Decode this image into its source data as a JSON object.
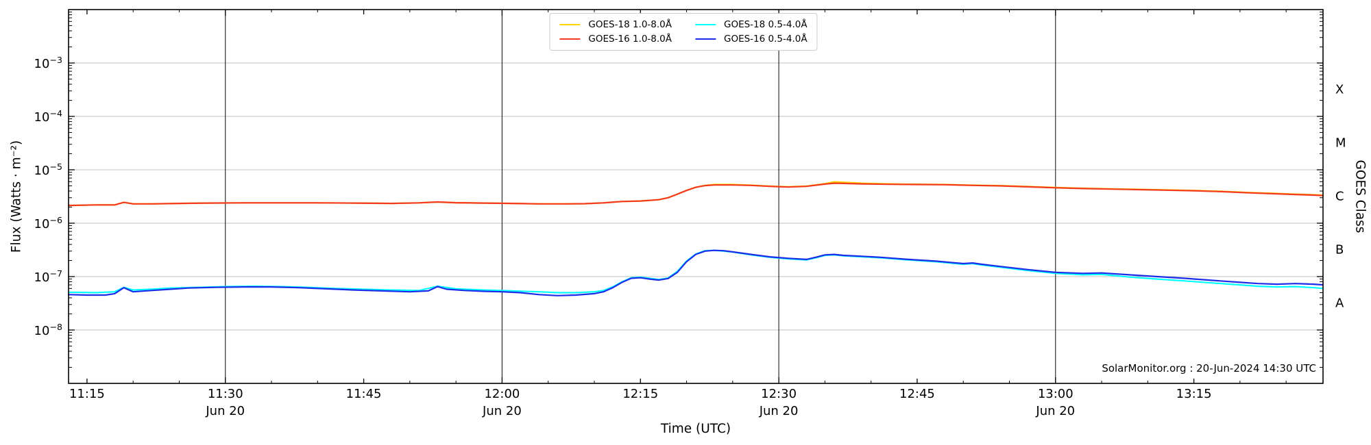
{
  "annotation": "SolarMonitor.org : 20-Jun-2024 14:30 UTC",
  "chart_data": {
    "type": "line",
    "title": "",
    "xlabel": "Time (UTC)",
    "ylabel_left": "Flux (Watts · m⁻²)",
    "ylabel_right": "GOES Class",
    "grid": {
      "horizontal": true,
      "vertical_at_dated_ticks": true
    },
    "legend_position": "top-center",
    "x_time_range_utc": [
      "11:13",
      "13:29"
    ],
    "x_minutes_range": [
      673,
      809
    ],
    "y_log10_range": [
      -9,
      -2
    ],
    "y_ticks": [
      {
        "exp": -3,
        "label": "10⁻³"
      },
      {
        "exp": -4,
        "label": "10⁻⁴"
      },
      {
        "exp": -5,
        "label": "10⁻⁵"
      },
      {
        "exp": -6,
        "label": "10⁻⁶"
      },
      {
        "exp": -7,
        "label": "10⁻⁷"
      },
      {
        "exp": -8,
        "label": "10⁻⁸"
      }
    ],
    "x_ticks": [
      {
        "min": 675,
        "label": "11:15"
      },
      {
        "min": 690,
        "label": "11:30",
        "date": "Jun 20",
        "gridline": true
      },
      {
        "min": 705,
        "label": "11:45"
      },
      {
        "min": 720,
        "label": "12:00",
        "date": "Jun 20",
        "gridline": true
      },
      {
        "min": 735,
        "label": "12:15"
      },
      {
        "min": 750,
        "label": "12:30",
        "date": "Jun 20",
        "gridline": true
      },
      {
        "min": 765,
        "label": "12:45"
      },
      {
        "min": 780,
        "label": "13:00",
        "date": "Jun 20",
        "gridline": true
      },
      {
        "min": 795,
        "label": "13:15"
      }
    ],
    "goes_class_labels": [
      {
        "label": "X",
        "log_center": -3.5
      },
      {
        "label": "M",
        "log_center": -4.5
      },
      {
        "label": "C",
        "log_center": -5.5
      },
      {
        "label": "B",
        "log_center": -6.5
      },
      {
        "label": "A",
        "log_center": -7.5
      }
    ],
    "series_units": {
      "x": "minutes after 00:00 UTC on 20-Jun-2024",
      "y": "Watts m^-2"
    },
    "series": [
      {
        "name": "GOES-18 1.0-8.0Å",
        "color": "#FFD400",
        "points": [
          [
            673,
            2.15e-06
          ],
          [
            676,
            2.2e-06
          ],
          [
            678,
            2.2e-06
          ],
          [
            679,
            2.45e-06
          ],
          [
            680,
            2.3e-06
          ],
          [
            682,
            2.3e-06
          ],
          [
            685,
            2.35e-06
          ],
          [
            688,
            2.38e-06
          ],
          [
            692,
            2.4e-06
          ],
          [
            696,
            2.4e-06
          ],
          [
            700,
            2.4e-06
          ],
          [
            704,
            2.38e-06
          ],
          [
            708,
            2.35e-06
          ],
          [
            711,
            2.4e-06
          ],
          [
            713,
            2.5e-06
          ],
          [
            715,
            2.42e-06
          ],
          [
            718,
            2.38e-06
          ],
          [
            721,
            2.35e-06
          ],
          [
            724,
            2.3e-06
          ],
          [
            727,
            2.3e-06
          ],
          [
            729,
            2.32e-06
          ],
          [
            731,
            2.4e-06
          ],
          [
            733,
            2.55e-06
          ],
          [
            735,
            2.6e-06
          ],
          [
            737,
            2.75e-06
          ],
          [
            738,
            3e-06
          ],
          [
            739,
            3.5e-06
          ],
          [
            740,
            4.1e-06
          ],
          [
            741,
            4.7e-06
          ],
          [
            742,
            5.1e-06
          ],
          [
            743,
            5.3e-06
          ],
          [
            745,
            5.3e-06
          ],
          [
            747,
            5.15e-06
          ],
          [
            749,
            4.95e-06
          ],
          [
            751,
            4.8e-06
          ],
          [
            753,
            4.95e-06
          ],
          [
            755,
            5.5e-06
          ],
          [
            756,
            5.95e-06
          ],
          [
            757,
            5.85e-06
          ],
          [
            759,
            5.6e-06
          ],
          [
            762,
            5.45e-06
          ],
          [
            765,
            5.35e-06
          ],
          [
            768,
            5.3e-06
          ],
          [
            771,
            5.15e-06
          ],
          [
            774,
            5.05e-06
          ],
          [
            777,
            4.85e-06
          ],
          [
            780,
            4.65e-06
          ],
          [
            783,
            4.5e-06
          ],
          [
            786,
            4.4e-06
          ],
          [
            789,
            4.3e-06
          ],
          [
            792,
            4.2e-06
          ],
          [
            795,
            4.1e-06
          ],
          [
            798,
            3.95e-06
          ],
          [
            801,
            3.75e-06
          ],
          [
            804,
            3.6e-06
          ],
          [
            806,
            3.5e-06
          ],
          [
            808,
            3.4e-06
          ],
          [
            809,
            3.35e-06
          ]
        ]
      },
      {
        "name": "GOES-16 1.0-8.0Å",
        "color": "#F23A1E",
        "points": [
          [
            673,
            2.15e-06
          ],
          [
            676,
            2.2e-06
          ],
          [
            678,
            2.2e-06
          ],
          [
            679,
            2.45e-06
          ],
          [
            680,
            2.3e-06
          ],
          [
            682,
            2.3e-06
          ],
          [
            685,
            2.35e-06
          ],
          [
            688,
            2.38e-06
          ],
          [
            692,
            2.4e-06
          ],
          [
            696,
            2.4e-06
          ],
          [
            700,
            2.4e-06
          ],
          [
            704,
            2.38e-06
          ],
          [
            708,
            2.35e-06
          ],
          [
            711,
            2.4e-06
          ],
          [
            713,
            2.5e-06
          ],
          [
            715,
            2.42e-06
          ],
          [
            718,
            2.38e-06
          ],
          [
            721,
            2.35e-06
          ],
          [
            724,
            2.3e-06
          ],
          [
            727,
            2.3e-06
          ],
          [
            729,
            2.32e-06
          ],
          [
            731,
            2.4e-06
          ],
          [
            733,
            2.55e-06
          ],
          [
            735,
            2.6e-06
          ],
          [
            737,
            2.75e-06
          ],
          [
            738,
            3e-06
          ],
          [
            739,
            3.5e-06
          ],
          [
            740,
            4.1e-06
          ],
          [
            741,
            4.7e-06
          ],
          [
            742,
            5.05e-06
          ],
          [
            743,
            5.2e-06
          ],
          [
            745,
            5.2e-06
          ],
          [
            747,
            5.1e-06
          ],
          [
            749,
            4.9e-06
          ],
          [
            751,
            4.75e-06
          ],
          [
            753,
            4.9e-06
          ],
          [
            755,
            5.4e-06
          ],
          [
            756,
            5.6e-06
          ],
          [
            757,
            5.55e-06
          ],
          [
            759,
            5.45e-06
          ],
          [
            762,
            5.35e-06
          ],
          [
            765,
            5.3e-06
          ],
          [
            768,
            5.25e-06
          ],
          [
            771,
            5.1e-06
          ],
          [
            774,
            5e-06
          ],
          [
            777,
            4.8e-06
          ],
          [
            780,
            4.6e-06
          ],
          [
            783,
            4.45e-06
          ],
          [
            786,
            4.35e-06
          ],
          [
            789,
            4.25e-06
          ],
          [
            792,
            4.15e-06
          ],
          [
            795,
            4.05e-06
          ],
          [
            798,
            3.9e-06
          ],
          [
            801,
            3.7e-06
          ],
          [
            804,
            3.55e-06
          ],
          [
            806,
            3.45e-06
          ],
          [
            808,
            3.35e-06
          ],
          [
            809,
            3.3e-06
          ]
        ]
      },
      {
        "name": "GOES-18 0.5-4.0Å",
        "color": "#00FFFF",
        "points": [
          [
            673,
            5.1e-08
          ],
          [
            676,
            5e-08
          ],
          [
            678,
            5.2e-08
          ],
          [
            679,
            6.3e-08
          ],
          [
            680,
            5.6e-08
          ],
          [
            682,
            5.8e-08
          ],
          [
            684,
            6.1e-08
          ],
          [
            687,
            6.3e-08
          ],
          [
            690,
            6.5e-08
          ],
          [
            693,
            6.6e-08
          ],
          [
            696,
            6.5e-08
          ],
          [
            699,
            6.3e-08
          ],
          [
            702,
            6e-08
          ],
          [
            705,
            5.8e-08
          ],
          [
            708,
            5.6e-08
          ],
          [
            711,
            5.5e-08
          ],
          [
            713,
            6.6e-08
          ],
          [
            715,
            5.9e-08
          ],
          [
            718,
            5.6e-08
          ],
          [
            721,
            5.4e-08
          ],
          [
            724,
            5.2e-08
          ],
          [
            726,
            5e-08
          ],
          [
            728,
            5e-08
          ],
          [
            730,
            5.2e-08
          ],
          [
            731,
            5.5e-08
          ],
          [
            732,
            6.4e-08
          ],
          [
            733,
            8e-08
          ],
          [
            734,
            9.5e-08
          ],
          [
            735,
            9.7e-08
          ],
          [
            736,
            9.3e-08
          ],
          [
            737,
            8.8e-08
          ],
          [
            738,
            9.4e-08
          ],
          [
            739,
            1.25e-07
          ],
          [
            740,
            1.95e-07
          ],
          [
            741,
            2.65e-07
          ],
          [
            742,
            3.05e-07
          ],
          [
            743,
            3.1e-07
          ],
          [
            744,
            3e-07
          ],
          [
            745,
            2.88e-07
          ],
          [
            747,
            2.55e-07
          ],
          [
            749,
            2.3e-07
          ],
          [
            751,
            2.15e-07
          ],
          [
            753,
            2.05e-07
          ],
          [
            754,
            2.25e-07
          ],
          [
            755,
            2.5e-07
          ],
          [
            756,
            2.55e-07
          ],
          [
            757,
            2.45e-07
          ],
          [
            759,
            2.35e-07
          ],
          [
            761,
            2.25e-07
          ],
          [
            764,
            2.05e-07
          ],
          [
            767,
            1.9e-07
          ],
          [
            770,
            1.7e-07
          ],
          [
            771,
            1.75e-07
          ],
          [
            772,
            1.65e-07
          ],
          [
            774,
            1.5e-07
          ],
          [
            777,
            1.3e-07
          ],
          [
            780,
            1.15e-07
          ],
          [
            783,
            1.08e-07
          ],
          [
            785,
            1.1e-07
          ],
          [
            788,
            9.8e-08
          ],
          [
            791,
            9e-08
          ],
          [
            794,
            8.3e-08
          ],
          [
            797,
            7.6e-08
          ],
          [
            800,
            7e-08
          ],
          [
            802,
            6.6e-08
          ],
          [
            804,
            6.4e-08
          ],
          [
            806,
            6.5e-08
          ],
          [
            808,
            6.2e-08
          ],
          [
            809,
            6e-08
          ]
        ]
      },
      {
        "name": "GOES-16 0.5-4.0Å",
        "color": "#1C2CE8",
        "points": [
          [
            673,
            4.6e-08
          ],
          [
            675,
            4.5e-08
          ],
          [
            677,
            4.5e-08
          ],
          [
            678,
            4.8e-08
          ],
          [
            679,
            6.2e-08
          ],
          [
            680,
            5.2e-08
          ],
          [
            682,
            5.5e-08
          ],
          [
            684,
            5.8e-08
          ],
          [
            686,
            6.1e-08
          ],
          [
            689,
            6.3e-08
          ],
          [
            692,
            6.4e-08
          ],
          [
            695,
            6.4e-08
          ],
          [
            698,
            6.2e-08
          ],
          [
            701,
            5.9e-08
          ],
          [
            704,
            5.6e-08
          ],
          [
            707,
            5.4e-08
          ],
          [
            710,
            5.2e-08
          ],
          [
            712,
            5.4e-08
          ],
          [
            713,
            6.5e-08
          ],
          [
            714,
            5.8e-08
          ],
          [
            716,
            5.5e-08
          ],
          [
            718,
            5.3e-08
          ],
          [
            720,
            5.2e-08
          ],
          [
            722,
            5e-08
          ],
          [
            724,
            4.6e-08
          ],
          [
            726,
            4.4e-08
          ],
          [
            728,
            4.5e-08
          ],
          [
            730,
            4.8e-08
          ],
          [
            731,
            5.2e-08
          ],
          [
            732,
            6.2e-08
          ],
          [
            733,
            7.8e-08
          ],
          [
            734,
            9.3e-08
          ],
          [
            735,
            9.5e-08
          ],
          [
            736,
            9e-08
          ],
          [
            737,
            8.6e-08
          ],
          [
            738,
            9.2e-08
          ],
          [
            739,
            1.2e-07
          ],
          [
            740,
            1.9e-07
          ],
          [
            741,
            2.6e-07
          ],
          [
            742,
            3e-07
          ],
          [
            743,
            3.1e-07
          ],
          [
            744,
            3.05e-07
          ],
          [
            745,
            2.9e-07
          ],
          [
            747,
            2.6e-07
          ],
          [
            749,
            2.35e-07
          ],
          [
            751,
            2.2e-07
          ],
          [
            753,
            2.1e-07
          ],
          [
            754,
            2.3e-07
          ],
          [
            755,
            2.55e-07
          ],
          [
            756,
            2.6e-07
          ],
          [
            757,
            2.5e-07
          ],
          [
            759,
            2.4e-07
          ],
          [
            761,
            2.3e-07
          ],
          [
            764,
            2.1e-07
          ],
          [
            767,
            1.95e-07
          ],
          [
            770,
            1.75e-07
          ],
          [
            771,
            1.8e-07
          ],
          [
            772,
            1.7e-07
          ],
          [
            774,
            1.55e-07
          ],
          [
            777,
            1.35e-07
          ],
          [
            780,
            1.2e-07
          ],
          [
            783,
            1.15e-07
          ],
          [
            785,
            1.17e-07
          ],
          [
            788,
            1.08e-07
          ],
          [
            791,
            1e-07
          ],
          [
            794,
            9.3e-08
          ],
          [
            797,
            8.5e-08
          ],
          [
            800,
            7.8e-08
          ],
          [
            802,
            7.4e-08
          ],
          [
            804,
            7.2e-08
          ],
          [
            806,
            7.4e-08
          ],
          [
            808,
            7.2e-08
          ],
          [
            809,
            7e-08
          ]
        ]
      }
    ]
  }
}
